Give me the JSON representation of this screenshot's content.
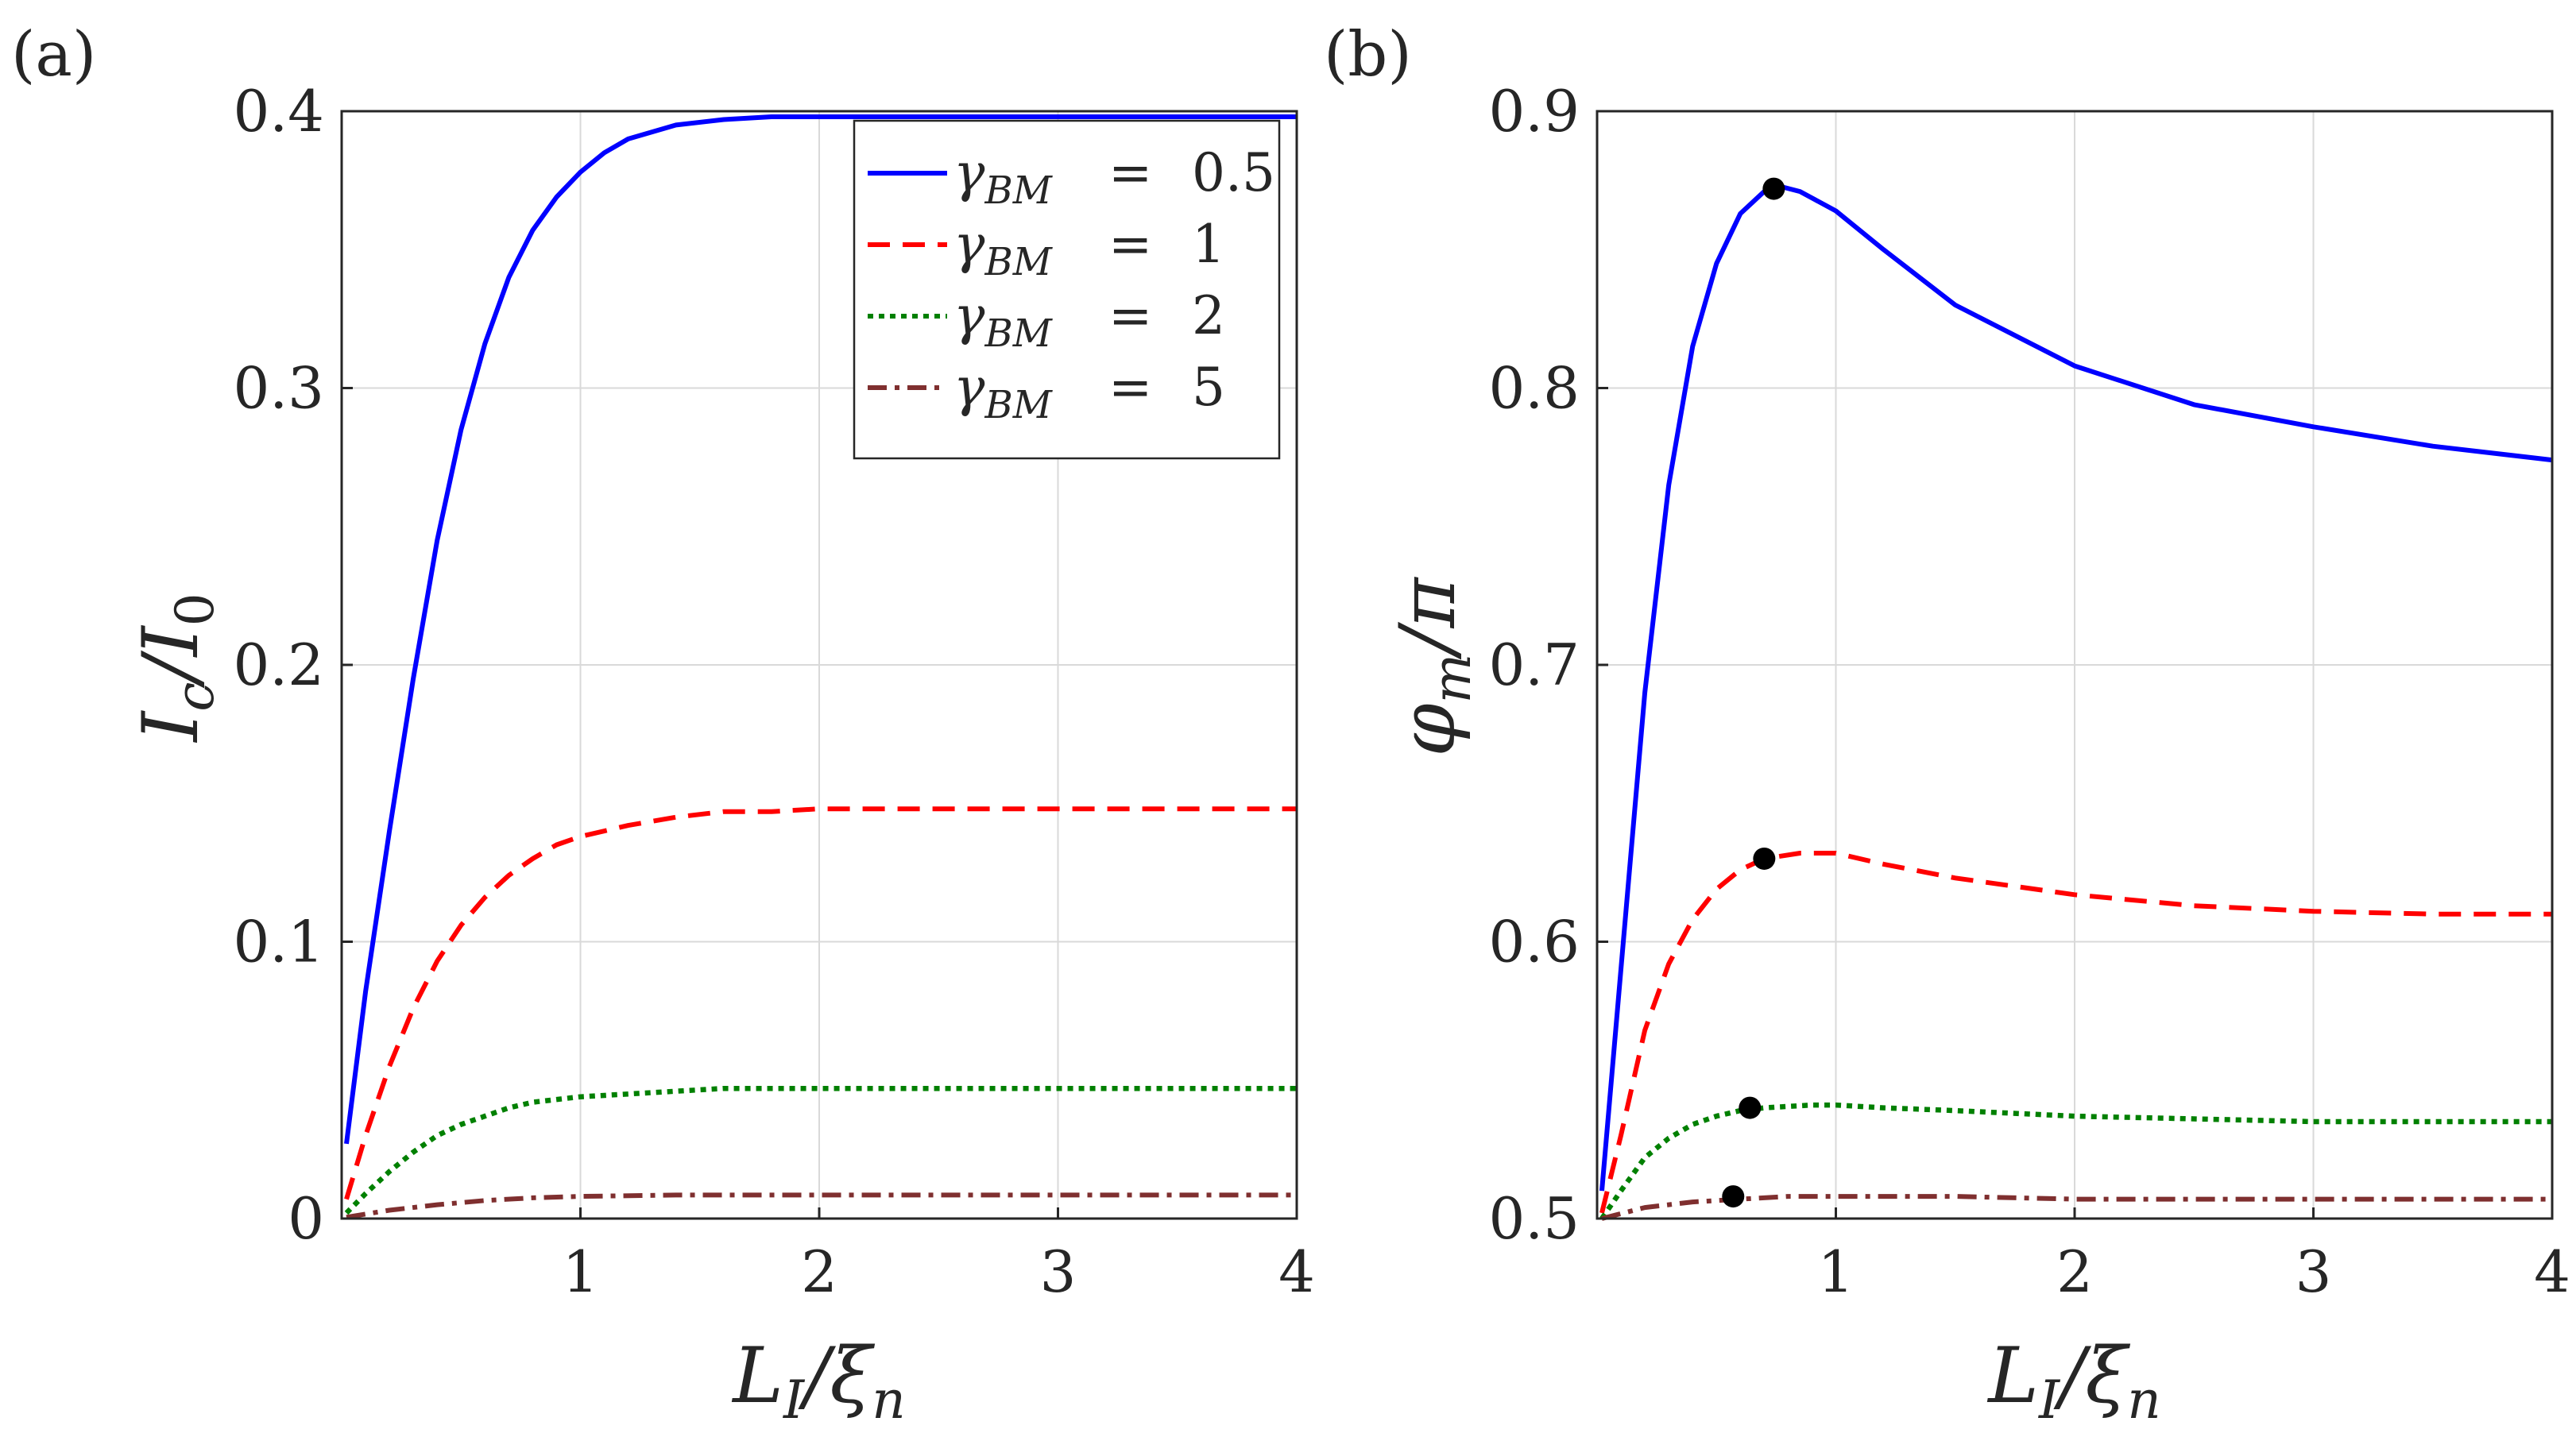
{
  "chart_data": [
    {
      "type": "line",
      "panel_label": "(a)",
      "xlabel": "L_I/ξ_n",
      "xlabel_main": "L",
      "xlabel_sub": "I",
      "xlabel_rest": "/ξ",
      "xlabel_sub2": "n",
      "ylabel": "I_c/I_0",
      "ylabel_main": "I",
      "ylabel_sub": "c",
      "ylabel_rest": "/I",
      "ylabel_sub2": "0",
      "xlim": [
        0,
        4
      ],
      "ylim": [
        0,
        0.4
      ],
      "xticks": [
        1,
        2,
        3,
        4
      ],
      "xtick_labels": [
        "1",
        "2",
        "3",
        "4"
      ],
      "yticks": [
        0,
        0.1,
        0.2,
        0.3,
        0.4
      ],
      "ytick_labels": [
        "0",
        "0.1",
        "0.2",
        "0.3",
        "0.4"
      ],
      "grid": true,
      "legend_position": "top-right",
      "series": [
        {
          "name": "γ_BM = 0.5",
          "gamma": "0.5",
          "color": "#0000ff",
          "dash": "solid",
          "x": [
            0.02,
            0.1,
            0.2,
            0.3,
            0.4,
            0.5,
            0.6,
            0.7,
            0.8,
            0.9,
            1.0,
            1.1,
            1.2,
            1.4,
            1.6,
            1.8,
            2.0,
            2.5,
            3.0,
            3.5,
            4.0
          ],
          "y": [
            0.027,
            0.082,
            0.14,
            0.195,
            0.245,
            0.285,
            0.316,
            0.34,
            0.357,
            0.369,
            0.378,
            0.385,
            0.39,
            0.395,
            0.397,
            0.398,
            0.398,
            0.398,
            0.398,
            0.398,
            0.398
          ]
        },
        {
          "name": "γ_BM = 1",
          "gamma": "1",
          "color": "#ff0000",
          "dash": "dashed",
          "x": [
            0.02,
            0.1,
            0.2,
            0.3,
            0.4,
            0.5,
            0.6,
            0.7,
            0.8,
            0.9,
            1.0,
            1.2,
            1.4,
            1.6,
            1.8,
            2.0,
            2.5,
            3.0,
            3.5,
            4.0
          ],
          "y": [
            0.007,
            0.03,
            0.055,
            0.076,
            0.093,
            0.106,
            0.116,
            0.124,
            0.13,
            0.135,
            0.138,
            0.142,
            0.145,
            0.147,
            0.147,
            0.148,
            0.148,
            0.148,
            0.148,
            0.148
          ]
        },
        {
          "name": "γ_BM = 2",
          "gamma": "2",
          "color": "#008000",
          "dash": "dotted",
          "x": [
            0.02,
            0.1,
            0.2,
            0.3,
            0.4,
            0.5,
            0.6,
            0.7,
            0.8,
            0.9,
            1.0,
            1.2,
            1.4,
            1.6,
            2.0,
            2.5,
            3.0,
            3.5,
            4.0
          ],
          "y": [
            0.002,
            0.009,
            0.017,
            0.024,
            0.03,
            0.034,
            0.037,
            0.04,
            0.042,
            0.043,
            0.044,
            0.045,
            0.046,
            0.047,
            0.047,
            0.047,
            0.047,
            0.047,
            0.047
          ]
        },
        {
          "name": "γ_BM = 5",
          "gamma": "5",
          "color": "#7f2f2f",
          "dash": "dashdot",
          "x": [
            0.02,
            0.2,
            0.4,
            0.6,
            0.8,
            1.0,
            1.4,
            2.0,
            3.0,
            4.0
          ],
          "y": [
            0.0005,
            0.003,
            0.005,
            0.0065,
            0.0075,
            0.008,
            0.0085,
            0.0085,
            0.0085,
            0.0085
          ]
        }
      ]
    },
    {
      "type": "line",
      "panel_label": "(b)",
      "xlabel": "L_I/ξ_n",
      "xlabel_main": "L",
      "xlabel_sub": "I",
      "xlabel_rest": "/ξ",
      "xlabel_sub2": "n",
      "ylabel": "φ_m/π",
      "ylabel_main": "φ",
      "ylabel_sub": "m",
      "ylabel_rest": "/π",
      "xlim": [
        0,
        4
      ],
      "ylim": [
        0.5,
        0.9
      ],
      "xticks": [
        1,
        2,
        3,
        4
      ],
      "xtick_labels": [
        "1",
        "2",
        "3",
        "4"
      ],
      "yticks": [
        0.5,
        0.6,
        0.7,
        0.8,
        0.9
      ],
      "ytick_labels": [
        "0.5",
        "0.6",
        "0.7",
        "0.8",
        "0.9"
      ],
      "grid": true,
      "series": [
        {
          "name": "γ_BM = 0.5",
          "color": "#0000ff",
          "dash": "solid",
          "x": [
            0.02,
            0.1,
            0.2,
            0.3,
            0.4,
            0.5,
            0.6,
            0.7,
            0.76,
            0.85,
            1.0,
            1.2,
            1.5,
            2.0,
            2.5,
            3.0,
            3.5,
            4.0
          ],
          "y": [
            0.51,
            0.59,
            0.69,
            0.765,
            0.815,
            0.845,
            0.863,
            0.871,
            0.873,
            0.871,
            0.864,
            0.85,
            0.83,
            0.808,
            0.794,
            0.786,
            0.779,
            0.774
          ],
          "marker": {
            "x": 0.74,
            "y": 0.872
          }
        },
        {
          "name": "γ_BM = 1",
          "color": "#ff0000",
          "dash": "dashed",
          "x": [
            0.02,
            0.1,
            0.2,
            0.3,
            0.4,
            0.5,
            0.6,
            0.7,
            0.85,
            1.0,
            1.2,
            1.5,
            2.0,
            2.5,
            3.0,
            3.5,
            4.0
          ],
          "y": [
            0.502,
            0.53,
            0.568,
            0.592,
            0.608,
            0.619,
            0.626,
            0.63,
            0.632,
            0.632,
            0.628,
            0.623,
            0.617,
            0.613,
            0.611,
            0.61,
            0.61
          ],
          "marker": {
            "x": 0.7,
            "y": 0.63
          }
        },
        {
          "name": "γ_BM = 2",
          "color": "#008000",
          "dash": "dotted",
          "x": [
            0.02,
            0.1,
            0.2,
            0.3,
            0.4,
            0.5,
            0.6,
            0.7,
            0.9,
            1.0,
            1.2,
            1.5,
            2.0,
            2.5,
            3.0,
            3.5,
            4.0
          ],
          "y": [
            0.5,
            0.51,
            0.522,
            0.529,
            0.534,
            0.537,
            0.539,
            0.54,
            0.541,
            0.541,
            0.54,
            0.539,
            0.537,
            0.536,
            0.535,
            0.535,
            0.535
          ],
          "marker": {
            "x": 0.64,
            "y": 0.54
          }
        },
        {
          "name": "γ_BM = 5",
          "color": "#7f2f2f",
          "dash": "dashdot",
          "x": [
            0.02,
            0.2,
            0.4,
            0.6,
            0.8,
            1.0,
            1.5,
            2.0,
            3.0,
            4.0
          ],
          "y": [
            0.5,
            0.504,
            0.506,
            0.507,
            0.508,
            0.508,
            0.508,
            0.507,
            0.507,
            0.507
          ],
          "marker": {
            "x": 0.57,
            "y": 0.508
          }
        }
      ]
    }
  ],
  "legend": {
    "symbol_main": "γ",
    "symbol_sub": "BM",
    "equals": "=",
    "values": [
      "0.5",
      "1",
      "2",
      "5"
    ]
  }
}
